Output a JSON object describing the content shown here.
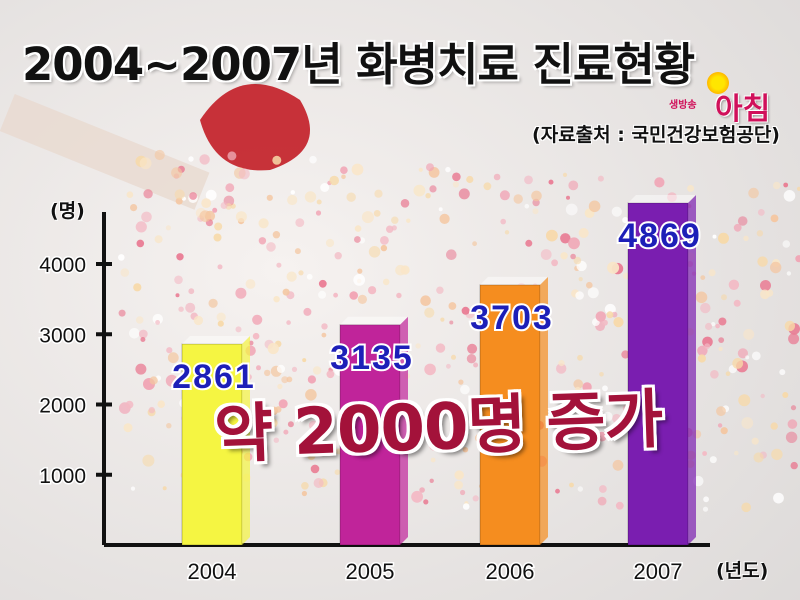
{
  "title": "2004~2007년 화병치료 진료현황",
  "source": "(자료출처 : 국민건강보험공단)",
  "logo": {
    "sub": "생방송",
    "main": "아침"
  },
  "callout": "약 2000명 증가",
  "colors": {
    "bar_2004": "#f5f542",
    "bar_2005": "#c0249a",
    "bar_2006": "#f58d1f",
    "bar_2007": "#7a1eb0",
    "value_label": "#1d1fb8"
  },
  "chart_data": {
    "type": "bar",
    "title": "2004~2007년 화병치료 진료현황",
    "categories": [
      "2004",
      "2005",
      "2006",
      "2007"
    ],
    "values": [
      2861,
      3135,
      3703,
      4869
    ],
    "data_labels": [
      "2861",
      "3135",
      "3703",
      "4869"
    ],
    "y_unit": "(명)",
    "x_unit": "(년도)",
    "y_ticks": [
      1000,
      2000,
      3000,
      4000
    ],
    "ylim": [
      0,
      5000
    ],
    "grid": false,
    "legend": "none"
  }
}
